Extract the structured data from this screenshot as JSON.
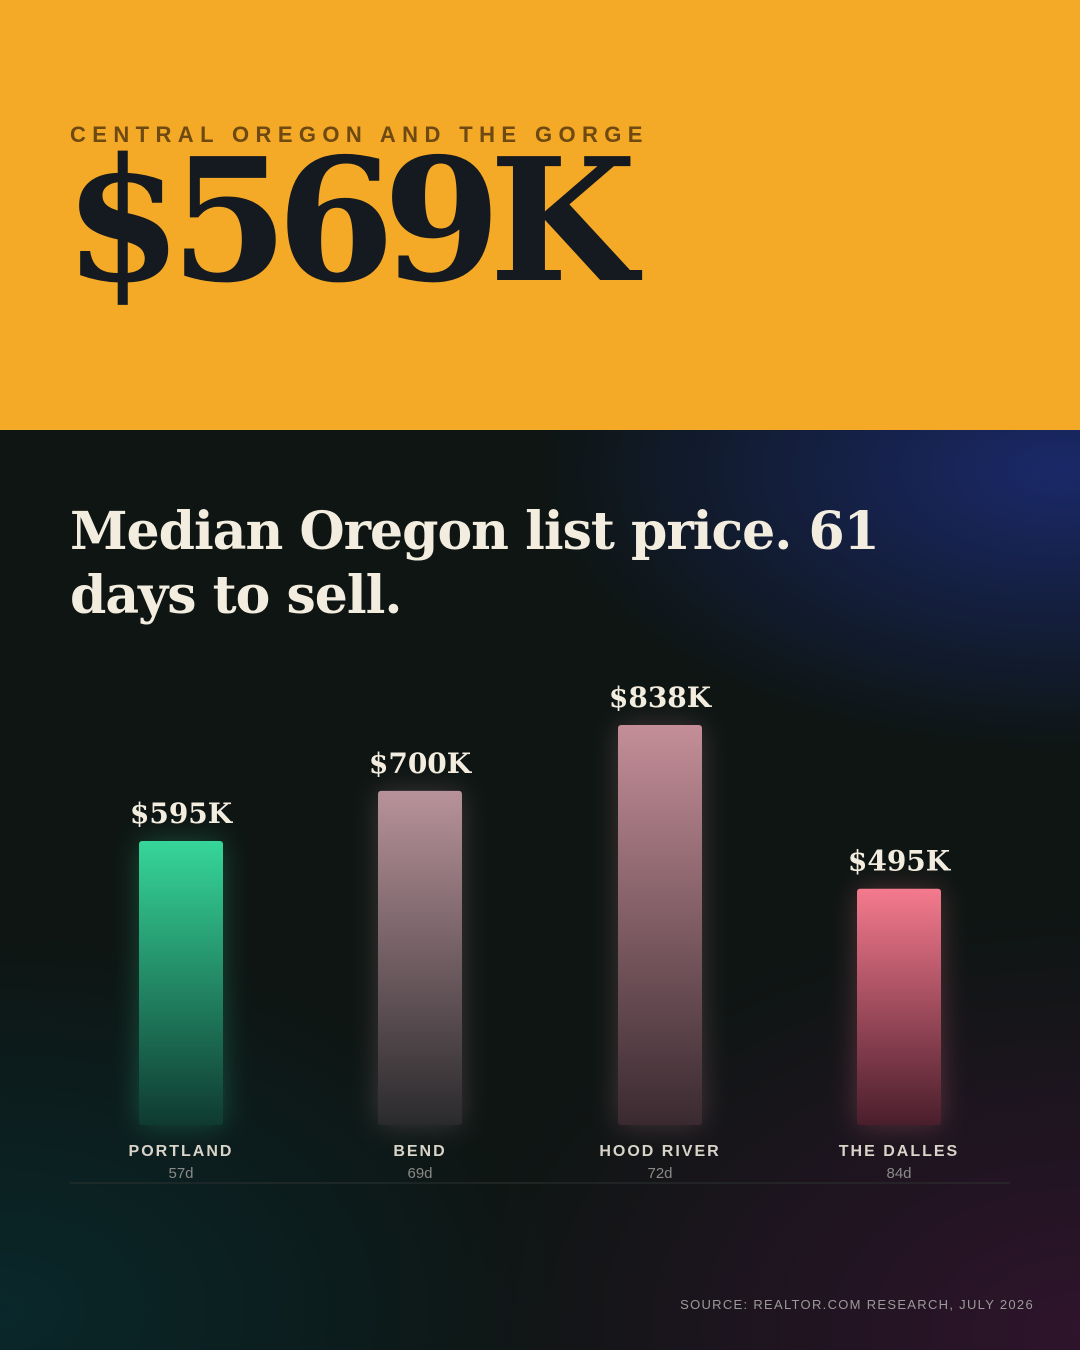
{
  "hero": {
    "kicker": "CENTRAL OREGON AND THE GORGE",
    "big_number": "$569K",
    "background": "#f4a927"
  },
  "headline": "Median Oregon list price. 61 days to sell.",
  "source": "SOURCE: REALTOR.COM RESEARCH, JULY 2026",
  "chart_data": {
    "type": "bar",
    "title": "",
    "xlabel": "",
    "ylabel": "",
    "categories": [
      "PORTLAND",
      "BEND",
      "HOOD RIVER",
      "THE DALLES"
    ],
    "values": [
      595,
      700,
      838,
      495
    ],
    "value_labels": [
      "$595K",
      "$700K",
      "$838K",
      "$495K"
    ],
    "days_to_sell": [
      "57d",
      "69d",
      "72d",
      "84d"
    ],
    "grid": false,
    "legend": "none",
    "colors": [
      [
        "#36d69a",
        "#0f3a30"
      ],
      [
        "#b8929a",
        "#2a2a2c"
      ],
      [
        "#c48e98",
        "#3a2a30"
      ],
      [
        "#f57a8e",
        "#4a1e2c"
      ]
    ]
  }
}
